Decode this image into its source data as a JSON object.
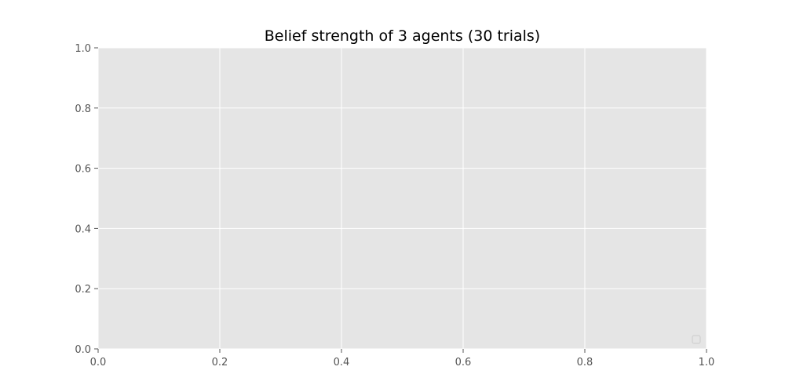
{
  "chart_data": {
    "type": "line",
    "title": "Belief strength of 3 agents (30 trials)",
    "xlabel": "",
    "ylabel": "",
    "xlim": [
      0.0,
      1.0
    ],
    "ylim": [
      0.0,
      1.0
    ],
    "x_ticks": [
      0.0,
      0.2,
      0.4,
      0.6,
      0.8,
      1.0
    ],
    "y_ticks": [
      0.0,
      0.2,
      0.4,
      0.6,
      0.8,
      1.0
    ],
    "x_tick_labels": [
      "0.0",
      "0.2",
      "0.4",
      "0.6",
      "0.8",
      "1.0"
    ],
    "y_tick_labels": [
      "0.0",
      "0.2",
      "0.4",
      "0.6",
      "0.8",
      "1.0"
    ],
    "series": [],
    "grid": true,
    "legend": "lower-right",
    "style": {
      "plot_background": "#e5e5e5",
      "grid_color": "#ffffff",
      "tick_color": "#555555",
      "title_color": "#000000"
    }
  }
}
